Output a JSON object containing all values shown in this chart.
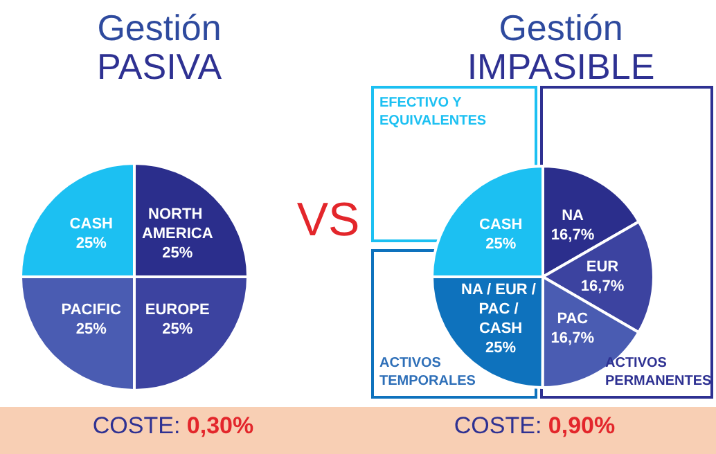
{
  "chart_data": [
    {
      "type": "pie",
      "title": "Gestión",
      "subtitle": "PASIVA",
      "categories": [
        "NORTH AMERICA",
        "EUROPE",
        "PACIFIC",
        "CASH"
      ],
      "values": [
        25,
        25,
        25,
        25
      ],
      "colors": [
        "#2b2e8c",
        "#3c43a0",
        "#4a5cb2",
        "#1cc0f2"
      ],
      "value_labels": [
        "25%",
        "25%",
        "25%",
        "25%"
      ],
      "annotations": [
        "VS",
        "COSTE: 0,30%"
      ]
    },
    {
      "type": "pie",
      "title": "Gestión",
      "subtitle": "IMPASIBLE",
      "categories": [
        "NA",
        "EUR",
        "PAC",
        "NA / EUR / PAC / CASH",
        "CASH"
      ],
      "values": [
        16.7,
        16.7,
        16.7,
        25,
        25
      ],
      "colors": [
        "#2b2e8c",
        "#3c43a0",
        "#4a5cb2",
        "#0e72bd",
        "#1cc0f2"
      ],
      "value_labels": [
        "16,7%",
        "16,7%",
        "16,7%",
        "25%",
        "25%"
      ],
      "annotations": [
        "EFECTIVO Y EQUIVALENTES",
        "ACTIVOS TEMPORALES",
        "ACTIVOS PERMANENTES",
        "COSTE: 0,90%"
      ]
    }
  ]
}
